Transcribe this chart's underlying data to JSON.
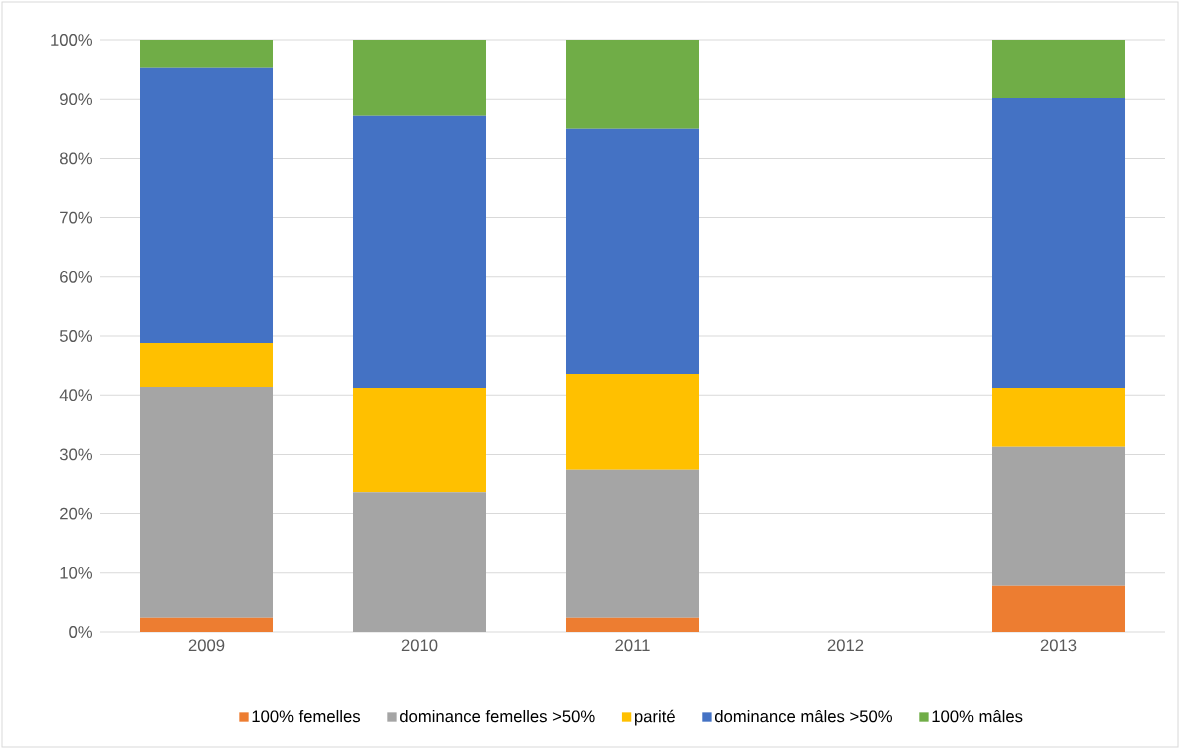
{
  "chart_data": {
    "type": "bar",
    "stacked": true,
    "categories": [
      "2009",
      "2010",
      "2011",
      "2012",
      "2013"
    ],
    "series": [
      {
        "name": "100% femelles",
        "color": "#ed7d31",
        "values": [
          2.4,
          0,
          2.4,
          null,
          7.8
        ]
      },
      {
        "name": "dominance femelles >50%",
        "color": "#a5a5a5",
        "values": [
          39.0,
          23.6,
          25.0,
          null,
          23.5
        ]
      },
      {
        "name": "parité",
        "color": "#ffc000",
        "values": [
          7.4,
          17.6,
          16.2,
          null,
          9.9
        ]
      },
      {
        "name": "dominance mâles >50%",
        "color": "#4472c4",
        "values": [
          46.5,
          46.0,
          41.4,
          null,
          49.0
        ]
      },
      {
        "name": "100% mâles",
        "color": "#70ad47",
        "values": [
          4.7,
          12.8,
          15.0,
          null,
          9.8
        ]
      }
    ],
    "ylim": [
      0,
      100
    ],
    "yticks": [
      {
        "value": 0,
        "label": "0%"
      },
      {
        "value": 10,
        "label": "10%"
      },
      {
        "value": 20,
        "label": "20%"
      },
      {
        "value": 30,
        "label": "30%"
      },
      {
        "value": 40,
        "label": "40%"
      },
      {
        "value": 50,
        "label": "50%"
      },
      {
        "value": 60,
        "label": "60%"
      },
      {
        "value": 70,
        "label": "70%"
      },
      {
        "value": 80,
        "label": "80%"
      },
      {
        "value": 90,
        "label": "90%"
      },
      {
        "value": 100,
        "label": "100%"
      }
    ],
    "grid": "y",
    "legend": "bottom"
  }
}
